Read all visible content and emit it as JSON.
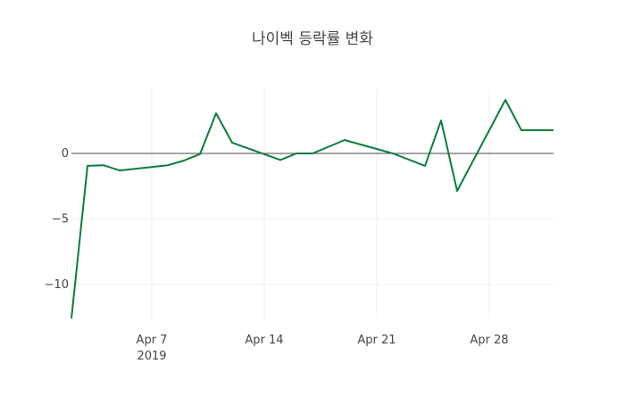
{
  "chart_data": {
    "type": "line",
    "title": "나이벡 등락률 변화",
    "xlabel": "",
    "ylabel": "",
    "x": [
      "2019-04-02",
      "2019-04-03",
      "2019-04-04",
      "2019-04-05",
      "2019-04-08",
      "2019-04-09",
      "2019-04-10",
      "2019-04-11",
      "2019-04-12",
      "2019-04-15",
      "2019-04-16",
      "2019-04-17",
      "2019-04-19",
      "2019-04-22",
      "2019-04-24",
      "2019-04-25",
      "2019-04-26",
      "2019-04-29",
      "2019-04-30",
      "2019-05-02"
    ],
    "series": [
      {
        "name": "등락률",
        "color": "#0a7d3e",
        "values": [
          -12.6,
          -0.95,
          -0.9,
          -1.3,
          -0.9,
          -0.55,
          -0.05,
          3.06,
          0.82,
          -0.5,
          0.0,
          0.0,
          1.02,
          0.0,
          -0.95,
          2.51,
          -2.86,
          4.08,
          1.77,
          1.77
        ]
      }
    ],
    "xlim": [
      "2019-04-02",
      "2019-05-02"
    ],
    "ylim": [
      -12.6,
      4.9
    ],
    "yticks": [
      0,
      -5,
      -10
    ],
    "ytick_labels": [
      "0",
      "−5",
      "−10"
    ],
    "xticks": [
      "2019-04-07",
      "2019-04-14",
      "2019-04-21",
      "2019-04-28"
    ],
    "xtick_labels": [
      "Apr 7",
      "Apr 14",
      "Apr 21",
      "Apr 28"
    ],
    "xtick_sublabel": "2019",
    "grid": true,
    "legend": "none"
  }
}
